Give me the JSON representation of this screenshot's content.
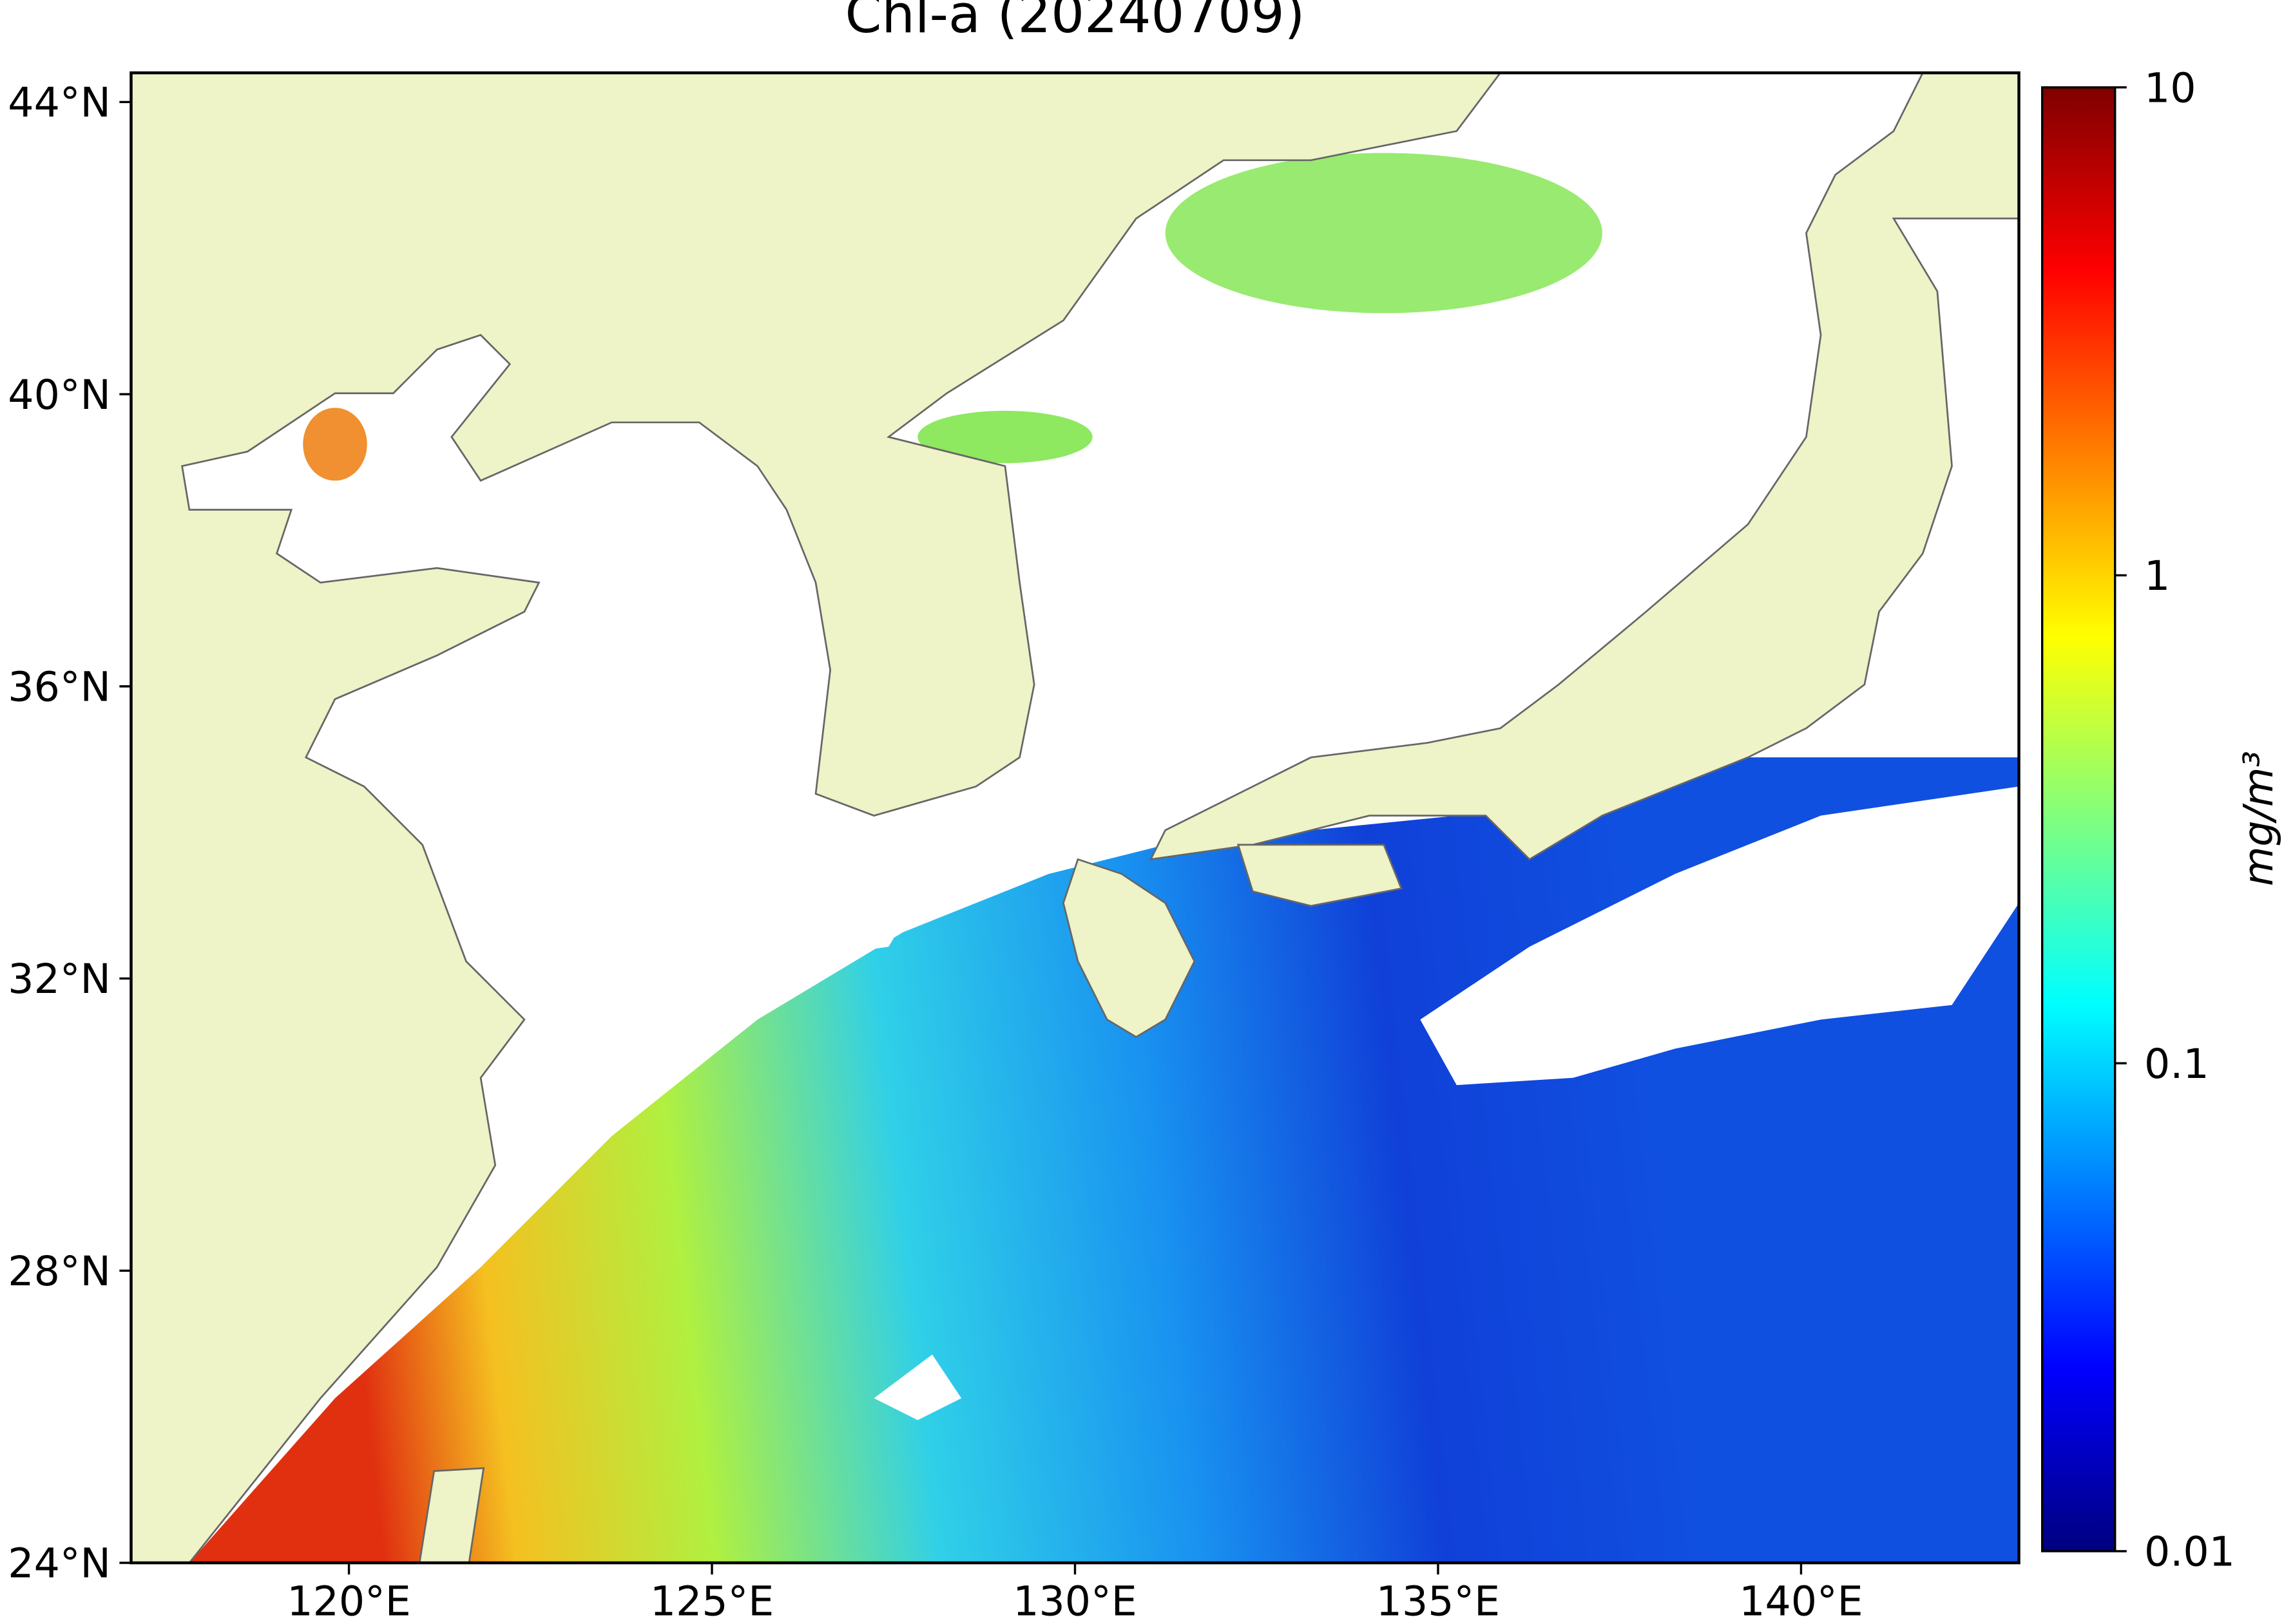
{
  "chart_data": {
    "type": "map",
    "title": "Chl-a (20240709)",
    "xlim": [
      117,
      143
    ],
    "ylim": [
      24,
      44.4
    ],
    "xticks": [
      {
        "value": 120,
        "label": "120°E"
      },
      {
        "value": 125,
        "label": "125°E"
      },
      {
        "value": 130,
        "label": "130°E"
      },
      {
        "value": 135,
        "label": "135°E"
      },
      {
        "value": 140,
        "label": "140°E"
      }
    ],
    "yticks": [
      {
        "value": 24,
        "label": "24°N"
      },
      {
        "value": 28,
        "label": "28°N"
      },
      {
        "value": 32,
        "label": "32°N"
      },
      {
        "value": 36,
        "label": "36°N"
      },
      {
        "value": 40,
        "label": "40°N"
      },
      {
        "value": 44,
        "label": "44°N"
      }
    ],
    "colorbar": {
      "label": "mg/m³",
      "log": true,
      "lim": [
        0.01,
        10
      ],
      "ticks": [
        0.01,
        0.1,
        1,
        10
      ],
      "colormap": "jet"
    },
    "land_color": "#eef3c8"
  }
}
